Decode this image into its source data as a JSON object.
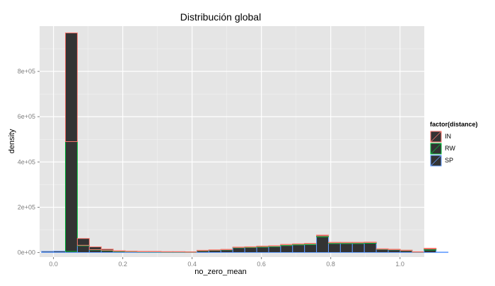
{
  "chart_data": {
    "type": "bar",
    "title": "Distribución global",
    "xlabel": "no_zero_mean",
    "ylabel": "density",
    "xlim": [
      -0.04,
      1.07
    ],
    "ylim": [
      -20000,
      1000000
    ],
    "x_ticks": [
      0.0,
      0.2,
      0.4,
      0.6,
      0.8,
      1.0
    ],
    "x_tick_labels": [
      "0.0",
      "0.2",
      "0.4",
      "0.6",
      "0.8",
      "1.0"
    ],
    "y_ticks": [
      0,
      200000,
      400000,
      600000,
      800000
    ],
    "y_tick_labels": [
      "0e+00",
      "2e+05",
      "4e+05",
      "6e+05",
      "8e+05"
    ],
    "grid": true,
    "legend_position": "right",
    "legend_title": "factor(distance)",
    "bar_fill": "#333333",
    "bin_width": 0.0345,
    "x_start": -0.0345,
    "series": [
      {
        "name": "IN",
        "color": "#f8766d",
        "values": [
          0,
          0,
          480000,
          30000,
          12000,
          5000,
          2000,
          1000,
          1000,
          1000,
          1000,
          1000,
          500,
          1000,
          1000,
          1000,
          1500,
          1500,
          2000,
          1500,
          2000,
          1500,
          2000,
          3500,
          2000,
          2000,
          2000,
          2000,
          1000,
          1000,
          500,
          500,
          3000,
          0
        ]
      },
      {
        "name": "RW",
        "color": "#00ba38",
        "values": [
          0,
          0,
          485000,
          2000,
          1000,
          1000,
          1000,
          1000,
          1000,
          1000,
          1000,
          1000,
          500,
          1000,
          1000,
          1000,
          1500,
          2000,
          2500,
          2500,
          3000,
          3000,
          3500,
          4500,
          3000,
          3000,
          3000,
          3000,
          1500,
          1500,
          1000,
          1000,
          5000,
          0
        ]
      },
      {
        "name": "SP",
        "color": "#619cff",
        "values": [
          5000,
          6000,
          5000,
          30000,
          12000,
          9000,
          5000,
          4000,
          3000,
          3000,
          2000,
          2000,
          2000,
          8000,
          10000,
          12000,
          21000,
          22000,
          24000,
          26000,
          31000,
          34000,
          35000,
          69000,
          40000,
          40000,
          40000,
          41000,
          14000,
          12000,
          9000,
          2000,
          11000,
          2000
        ]
      }
    ]
  }
}
